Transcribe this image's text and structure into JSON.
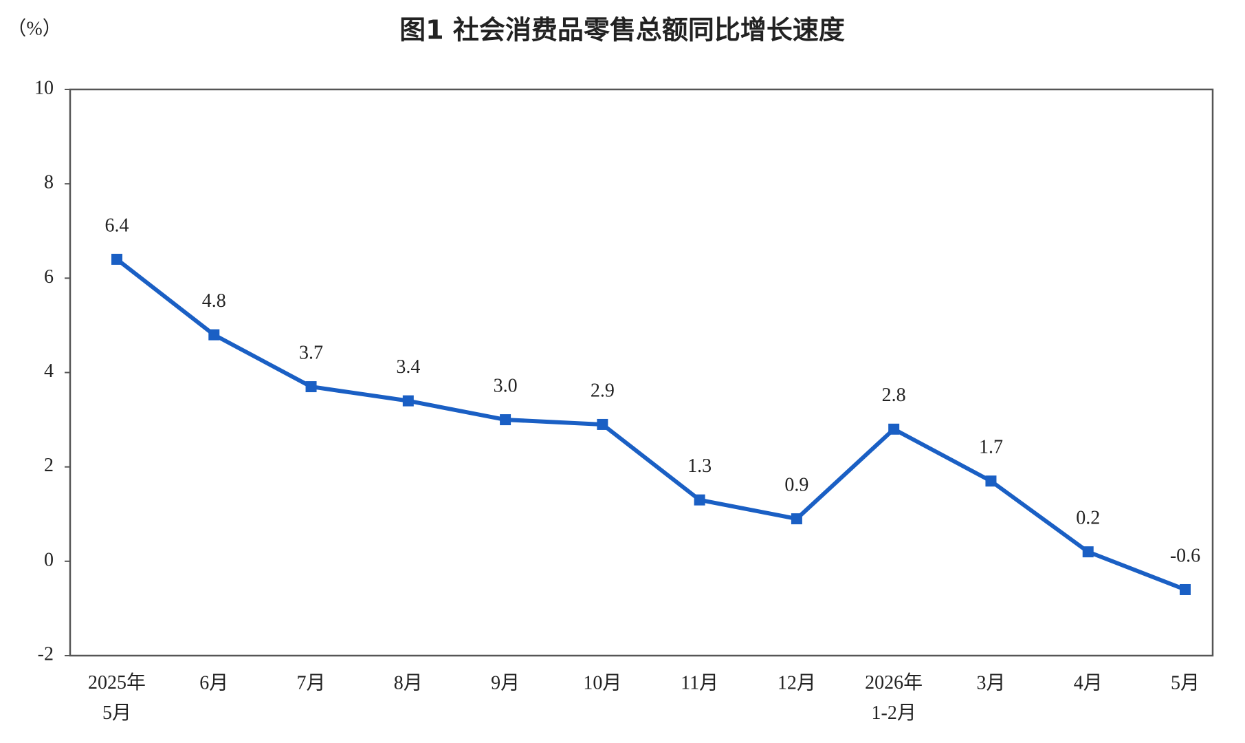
{
  "chart_data": {
    "type": "line",
    "title": "图1  社会消费品零售总额同比增长速度",
    "y_label": "（%）",
    "categories": [
      "2025年\n5月",
      "6月",
      "7月",
      "8月",
      "9月",
      "10月",
      "11月",
      "12月",
      "2026年\n1-2月",
      "3月",
      "4月",
      "5月"
    ],
    "values": [
      6.4,
      4.8,
      3.7,
      3.4,
      3.0,
      2.9,
      1.3,
      0.9,
      2.8,
      1.7,
      0.2,
      -0.6
    ],
    "value_labels": [
      "6.4",
      "4.8",
      "3.7",
      "3.4",
      "3.0",
      "2.9",
      "1.3",
      "0.9",
      "2.8",
      "1.7",
      "0.2",
      "-0.6"
    ],
    "color": "#1a5fc4",
    "ylim": [
      -2,
      10
    ],
    "yticks": [
      -2,
      0,
      2,
      4,
      6,
      8,
      10
    ],
    "grid": false
  }
}
